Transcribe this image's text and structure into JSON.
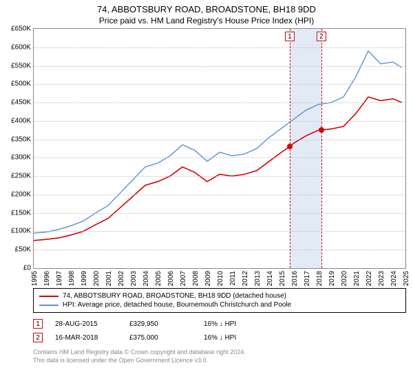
{
  "title": "74, ABBOTSBURY ROAD, BROADSTONE, BH18 9DD",
  "subtitle": "Price paid vs. HM Land Registry's House Price Index (HPI)",
  "chart": {
    "type": "line",
    "background_color": "#ffffff",
    "grid_color": "#c0c0c0",
    "axis_color": "#888888",
    "y_axis": {
      "min": 0,
      "max": 650000,
      "tick_step": 50000,
      "tick_labels": [
        "£0",
        "£50K",
        "£100K",
        "£150K",
        "£200K",
        "£250K",
        "£300K",
        "£350K",
        "£400K",
        "£450K",
        "£500K",
        "£550K",
        "£600K",
        "£650K"
      ]
    },
    "x_axis": {
      "min": 1995,
      "max": 2025,
      "ticks": [
        1995,
        1996,
        1997,
        1998,
        1999,
        2000,
        2001,
        2002,
        2003,
        2004,
        2005,
        2006,
        2007,
        2008,
        2009,
        2010,
        2011,
        2012,
        2013,
        2014,
        2015,
        2016,
        2017,
        2018,
        2019,
        2020,
        2021,
        2022,
        2023,
        2024,
        2025
      ]
    },
    "series": [
      {
        "name": "price_paid",
        "label": "74, ABBOTSBURY ROAD, BROADSTONE, BH18 9DD (detached house)",
        "color": "#d40000",
        "line_width": 1.6,
        "points": [
          [
            1995,
            75000
          ],
          [
            1996,
            78000
          ],
          [
            1997,
            82000
          ],
          [
            1998,
            90000
          ],
          [
            1999,
            100000
          ],
          [
            2000,
            118000
          ],
          [
            2001,
            135000
          ],
          [
            2002,
            165000
          ],
          [
            2003,
            195000
          ],
          [
            2004,
            225000
          ],
          [
            2005,
            235000
          ],
          [
            2006,
            250000
          ],
          [
            2007,
            275000
          ],
          [
            2008,
            260000
          ],
          [
            2009,
            235000
          ],
          [
            2010,
            255000
          ],
          [
            2011,
            250000
          ],
          [
            2012,
            255000
          ],
          [
            2013,
            265000
          ],
          [
            2014,
            290000
          ],
          [
            2015,
            315000
          ],
          [
            2015.66,
            329950
          ],
          [
            2016,
            340000
          ],
          [
            2017,
            360000
          ],
          [
            2018,
            375000
          ],
          [
            2018.21,
            375000
          ],
          [
            2019,
            378000
          ],
          [
            2020,
            385000
          ],
          [
            2021,
            420000
          ],
          [
            2022,
            465000
          ],
          [
            2023,
            455000
          ],
          [
            2024,
            460000
          ],
          [
            2024.7,
            450000
          ]
        ]
      },
      {
        "name": "hpi",
        "label": "HPI: Average price, detached house, Bournemouth Christchurch and Poole",
        "color": "#5b8fd6",
        "line_width": 1.4,
        "points": [
          [
            1995,
            95000
          ],
          [
            1996,
            98000
          ],
          [
            1997,
            105000
          ],
          [
            1998,
            115000
          ],
          [
            1999,
            128000
          ],
          [
            2000,
            150000
          ],
          [
            2001,
            170000
          ],
          [
            2002,
            205000
          ],
          [
            2003,
            240000
          ],
          [
            2004,
            275000
          ],
          [
            2005,
            285000
          ],
          [
            2006,
            305000
          ],
          [
            2007,
            335000
          ],
          [
            2008,
            320000
          ],
          [
            2009,
            290000
          ],
          [
            2010,
            315000
          ],
          [
            2011,
            305000
          ],
          [
            2012,
            310000
          ],
          [
            2013,
            325000
          ],
          [
            2014,
            355000
          ],
          [
            2015,
            380000
          ],
          [
            2016,
            405000
          ],
          [
            2017,
            430000
          ],
          [
            2018,
            445000
          ],
          [
            2019,
            450000
          ],
          [
            2020,
            465000
          ],
          [
            2021,
            520000
          ],
          [
            2022,
            590000
          ],
          [
            2023,
            555000
          ],
          [
            2024,
            560000
          ],
          [
            2024.7,
            545000
          ]
        ]
      }
    ],
    "highlight_band": {
      "x_start": 2015.66,
      "x_end": 2018.21,
      "color": "rgba(173,196,230,0.35)"
    },
    "markers": [
      {
        "id": "1",
        "x": 2015.66,
        "y": 329950,
        "line_color": "#d40000",
        "dot_color": "#d40000"
      },
      {
        "id": "2",
        "x": 2018.21,
        "y": 375000,
        "line_color": "#d40000",
        "dot_color": "#d40000"
      }
    ]
  },
  "legend": {
    "border_color": "#000000",
    "items": [
      {
        "color": "#d40000",
        "label": "74, ABBOTSBURY ROAD, BROADSTONE, BH18 9DD (detached house)"
      },
      {
        "color": "#5b8fd6",
        "label": "HPI: Average price, detached house, Bournemouth Christchurch and Poole"
      }
    ]
  },
  "transactions": [
    {
      "marker": "1",
      "marker_color": "#d40000",
      "date": "28-AUG-2015",
      "price": "£329,950",
      "delta": "16% ↓ HPI"
    },
    {
      "marker": "2",
      "marker_color": "#d40000",
      "date": "16-MAR-2018",
      "price": "£375,000",
      "delta": "16% ↓ HPI"
    }
  ],
  "footer": {
    "line1": "Contains HM Land Registry data © Crown copyright and database right 2024.",
    "line2": "This data is licensed under the Open Government Licence v3.0."
  }
}
